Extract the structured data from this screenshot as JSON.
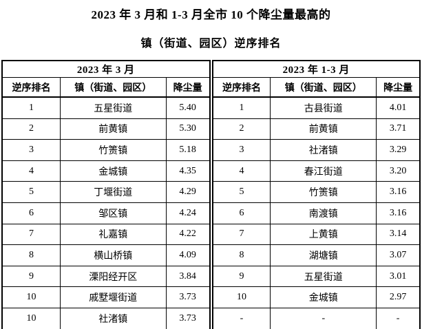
{
  "page": {
    "title_line1": "2023 年 3 月和 1-3 月全市 10 个降尘量最高的",
    "title_line2": "镇（街道、园区）逆序排名"
  },
  "tables": [
    {
      "period": "2023 年 3 月",
      "columns": [
        "逆序排名",
        "镇（街道、园区）",
        "降尘量"
      ],
      "rows": [
        [
          "1",
          "五星街道",
          "5.40"
        ],
        [
          "2",
          "前黄镇",
          "5.30"
        ],
        [
          "3",
          "竹箦镇",
          "5.18"
        ],
        [
          "4",
          "金城镇",
          "4.35"
        ],
        [
          "5",
          "丁堰街道",
          "4.29"
        ],
        [
          "6",
          "邹区镇",
          "4.24"
        ],
        [
          "7",
          "礼嘉镇",
          "4.22"
        ],
        [
          "8",
          "横山桥镇",
          "4.09"
        ],
        [
          "9",
          "溧阳经开区",
          "3.84"
        ],
        [
          "10",
          "戚墅堰街道",
          "3.73"
        ],
        [
          "10",
          "社渚镇",
          "3.73"
        ]
      ]
    },
    {
      "period": "2023 年 1-3 月",
      "columns": [
        "逆序排名",
        "镇（街道、园区）",
        "降尘量"
      ],
      "rows": [
        [
          "1",
          "古县街道",
          "4.01"
        ],
        [
          "2",
          "前黄镇",
          "3.71"
        ],
        [
          "3",
          "社渚镇",
          "3.29"
        ],
        [
          "4",
          "春江街道",
          "3.20"
        ],
        [
          "5",
          "竹箦镇",
          "3.16"
        ],
        [
          "6",
          "南渡镇",
          "3.16"
        ],
        [
          "7",
          "上黄镇",
          "3.14"
        ],
        [
          "8",
          "湖塘镇",
          "3.07"
        ],
        [
          "9",
          "五星街道",
          "3.01"
        ],
        [
          "10",
          "金城镇",
          "2.97"
        ],
        [
          "-",
          "-",
          "-"
        ]
      ]
    }
  ]
}
